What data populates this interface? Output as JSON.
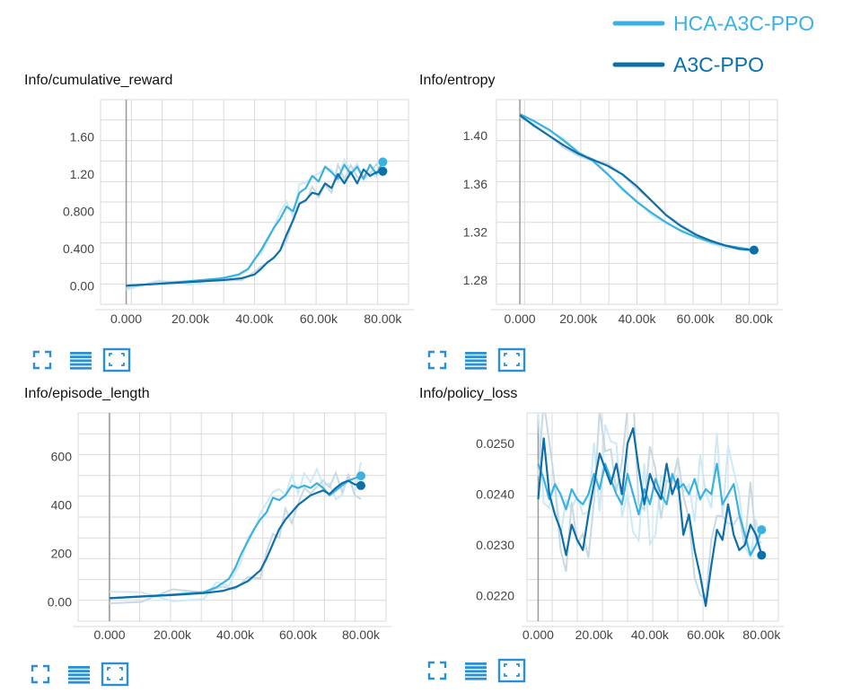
{
  "legend": [
    {
      "name": "HCA-A3C-PPO",
      "color": "#3bb1e0"
    },
    {
      "name": "A3C-PPO",
      "color": "#0d6fa8"
    }
  ],
  "colors": {
    "hca": "#3bb1e0",
    "a3c": "#0d6fa8",
    "hca_raw": "#cde9f6",
    "a3c_raw": "#c9d9e4",
    "grid": "#d9d9d9",
    "axis": "#999999",
    "toolbar": "#2b8fd6"
  },
  "toolbar_icons": [
    "fullscreen-icon",
    "data-table-icon",
    "fit-domain-icon"
  ],
  "chart_data": [
    {
      "type": "line",
      "title": "Info/cumulative_reward",
      "xlabel": "",
      "ylabel": "",
      "xlim": [
        -8000,
        88000
      ],
      "ylim": [
        -0.2,
        2.0
      ],
      "xticks": [
        0,
        20000,
        40000,
        60000,
        80000
      ],
      "xtick_labels": [
        "0.000",
        "20.00k",
        "40.00k",
        "60.00k",
        "80.00k"
      ],
      "yticks": [
        0,
        0.4,
        0.8,
        1.2,
        1.6
      ],
      "ytick_labels": [
        "0.00",
        "0.400",
        "0.800",
        "1.20",
        "1.60"
      ],
      "grid": true,
      "series": [
        {
          "name": "HCA-A3C-PPO",
          "x": [
            0,
            10000,
            20000,
            30000,
            35000,
            38000,
            40000,
            42000,
            44000,
            46000,
            48000,
            50000,
            52000,
            54000,
            56000,
            58000,
            60000,
            62000,
            64000,
            66000,
            68000,
            70000,
            72000,
            74000,
            76000,
            78000,
            80000
          ],
          "values": [
            0,
            0.02,
            0.05,
            0.08,
            0.12,
            0.18,
            0.28,
            0.38,
            0.5,
            0.62,
            0.72,
            0.85,
            0.8,
            1.0,
            1.05,
            1.18,
            1.12,
            1.28,
            1.22,
            1.15,
            1.3,
            1.2,
            1.28,
            1.15,
            1.3,
            1.2,
            1.33
          ]
        },
        {
          "name": "A3C-PPO",
          "x": [
            0,
            10000,
            20000,
            30000,
            36000,
            40000,
            42000,
            44000,
            46000,
            48000,
            50000,
            52000,
            54000,
            56000,
            58000,
            60000,
            62000,
            64000,
            66000,
            68000,
            70000,
            72000,
            74000,
            76000,
            78000,
            80000
          ],
          "values": [
            0,
            0.02,
            0.04,
            0.06,
            0.08,
            0.12,
            0.18,
            0.25,
            0.3,
            0.38,
            0.55,
            0.7,
            0.88,
            0.92,
            1.0,
            0.98,
            1.1,
            1.05,
            1.2,
            1.1,
            1.22,
            1.1,
            1.25,
            1.18,
            1.22,
            1.23
          ]
        }
      ]
    },
    {
      "type": "line",
      "title": "Info/entropy",
      "xlabel": "",
      "ylabel": "",
      "xlim": [
        -8000,
        88000
      ],
      "ylim": [
        1.26,
        1.43
      ],
      "xticks": [
        0,
        20000,
        40000,
        60000,
        80000
      ],
      "xtick_labels": [
        "0.000",
        "20.00k",
        "40.00k",
        "60.00k",
        "80.00k"
      ],
      "yticks": [
        1.28,
        1.32,
        1.36,
        1.4
      ],
      "ytick_labels": [
        "1.28",
        "1.32",
        "1.36",
        "1.40"
      ],
      "grid": true,
      "series": [
        {
          "name": "HCA-A3C-PPO",
          "x": [
            0,
            5000,
            10000,
            15000,
            20000,
            25000,
            30000,
            35000,
            40000,
            45000,
            50000,
            55000,
            60000,
            65000,
            70000,
            75000,
            80000
          ],
          "values": [
            1.418,
            1.412,
            1.405,
            1.396,
            1.386,
            1.379,
            1.368,
            1.356,
            1.345,
            1.336,
            1.328,
            1.321,
            1.316,
            1.312,
            1.309,
            1.307,
            1.305
          ]
        },
        {
          "name": "A3C-PPO",
          "x": [
            0,
            5000,
            10000,
            15000,
            20000,
            25000,
            30000,
            35000,
            40000,
            45000,
            50000,
            55000,
            60000,
            65000,
            70000,
            75000,
            80000
          ],
          "values": [
            1.417,
            1.408,
            1.4,
            1.392,
            1.385,
            1.38,
            1.375,
            1.368,
            1.358,
            1.346,
            1.334,
            1.325,
            1.318,
            1.313,
            1.309,
            1.306,
            1.305
          ]
        }
      ]
    },
    {
      "type": "line",
      "title": "Info/episode_length",
      "xlabel": "",
      "ylabel": "",
      "xlim": [
        -10000,
        88000
      ],
      "ylim": [
        -80,
        780
      ],
      "xticks": [
        0,
        20000,
        40000,
        60000,
        80000
      ],
      "xtick_labels": [
        "0.000",
        "20.00k",
        "40.00k",
        "60.00k",
        "80.00k"
      ],
      "yticks": [
        0,
        200,
        400,
        600
      ],
      "ytick_labels": [
        "0.00",
        "200",
        "400",
        "600"
      ],
      "grid": true,
      "series": [
        {
          "name": "HCA-A3C-PPO",
          "x": [
            0,
            10000,
            20000,
            30000,
            34000,
            38000,
            40000,
            42000,
            44000,
            46000,
            48000,
            50000,
            52000,
            54000,
            56000,
            58000,
            60000,
            62000,
            64000,
            66000,
            68000,
            70000,
            72000,
            74000,
            76000,
            78000,
            80000
          ],
          "values": [
            15,
            22,
            30,
            40,
            60,
            95,
            140,
            200,
            250,
            300,
            340,
            370,
            430,
            420,
            440,
            480,
            470,
            480,
            470,
            490,
            470,
            440,
            460,
            480,
            500,
            510,
            520
          ]
        },
        {
          "name": "A3C-PPO",
          "x": [
            0,
            10000,
            20000,
            30000,
            36000,
            40000,
            44000,
            48000,
            50000,
            52000,
            54000,
            56000,
            58000,
            60000,
            62000,
            64000,
            66000,
            68000,
            70000,
            72000,
            74000,
            76000,
            78000,
            80000
          ],
          "values": [
            15,
            22,
            28,
            36,
            45,
            60,
            85,
            130,
            180,
            240,
            300,
            340,
            370,
            400,
            420,
            440,
            450,
            460,
            445,
            470,
            490,
            500,
            485,
            480
          ]
        }
      ]
    },
    {
      "type": "line",
      "title": "Info/policy_loss",
      "xlabel": "",
      "ylabel": "",
      "xlim": [
        -4000,
        86000
      ],
      "ylim": [
        0.0215,
        0.0256
      ],
      "xticks": [
        0,
        20000,
        40000,
        60000,
        80000
      ],
      "xtick_labels": [
        "0.000",
        "20.00k",
        "40.00k",
        "60.00k",
        "80.00k"
      ],
      "yticks": [
        0.022,
        0.023,
        0.024,
        0.025
      ],
      "ytick_labels": [
        "0.0220",
        "0.0230",
        "0.0240",
        "0.0250"
      ],
      "grid": true,
      "series": [
        {
          "name": "HCA-A3C-PPO",
          "x": [
            0,
            2000,
            4000,
            6000,
            8000,
            10000,
            12000,
            14000,
            16000,
            18000,
            20000,
            22000,
            24000,
            26000,
            28000,
            30000,
            32000,
            34000,
            36000,
            38000,
            40000,
            42000,
            44000,
            46000,
            48000,
            50000,
            52000,
            54000,
            56000,
            58000,
            60000,
            62000,
            64000,
            66000,
            68000,
            70000,
            72000,
            74000,
            76000,
            78000,
            80000
          ],
          "values": [
            0.0246,
            0.0243,
            0.0239,
            0.0242,
            0.024,
            0.0237,
            0.0241,
            0.0239,
            0.0238,
            0.024,
            0.0244,
            0.0241,
            0.0246,
            0.0243,
            0.024,
            0.0238,
            0.0244,
            0.024,
            0.0236,
            0.0241,
            0.0238,
            0.0243,
            0.024,
            0.0238,
            0.0244,
            0.0241,
            0.0242,
            0.024,
            0.0243,
            0.0239,
            0.0241,
            0.024,
            0.0246,
            0.0238,
            0.024,
            0.0242,
            0.0236,
            0.0232,
            0.0228,
            0.023,
            0.0233
          ]
        },
        {
          "name": "A3C-PPO",
          "x": [
            0,
            2000,
            4000,
            6000,
            8000,
            10000,
            12000,
            14000,
            16000,
            18000,
            20000,
            22000,
            24000,
            26000,
            28000,
            30000,
            32000,
            34000,
            36000,
            38000,
            40000,
            42000,
            44000,
            46000,
            48000,
            50000,
            52000,
            54000,
            56000,
            58000,
            60000,
            62000,
            64000,
            66000,
            68000,
            70000,
            72000,
            74000,
            76000,
            78000,
            80000
          ],
          "values": [
            0.0239,
            0.0251,
            0.024,
            0.0236,
            0.0233,
            0.0228,
            0.0234,
            0.0231,
            0.0229,
            0.0236,
            0.0242,
            0.0248,
            0.0245,
            0.0242,
            0.0246,
            0.024,
            0.025,
            0.0253,
            0.0245,
            0.0238,
            0.0244,
            0.0241,
            0.0239,
            0.0246,
            0.024,
            0.0243,
            0.0232,
            0.0236,
            0.0229,
            0.0224,
            0.0218,
            0.0226,
            0.0233,
            0.0231,
            0.0238,
            0.0232,
            0.0229,
            0.023,
            0.0234,
            0.0232,
            0.0228
          ]
        }
      ]
    }
  ]
}
